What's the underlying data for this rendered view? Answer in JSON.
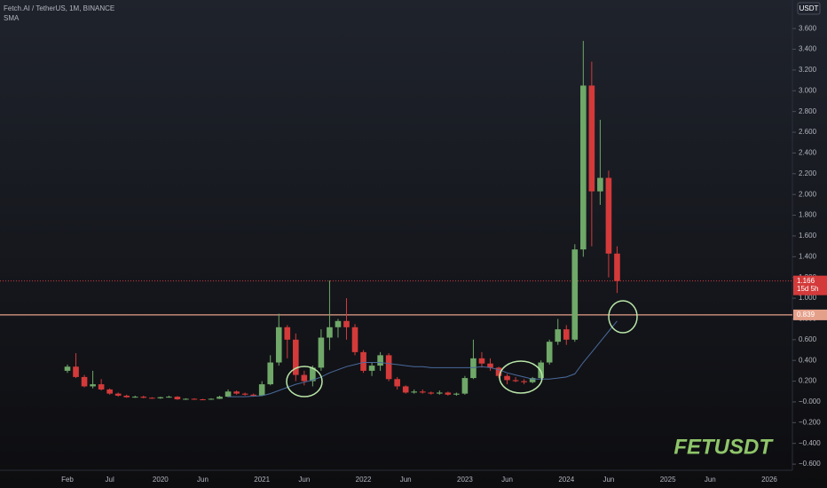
{
  "chart_data": {
    "type": "candlestick",
    "title": "Fetch.AI / TetherUS, 1M, BINANCE",
    "currency": "USDT",
    "watermark": "FETUSDT",
    "countdown": "15d 5h",
    "last_price": 1.166,
    "level_line": 0.839,
    "up_color": "#6fa868",
    "down_color": "#d43a3a",
    "categories": [
      "Feb",
      null,
      null,
      null,
      null,
      "Jul",
      null,
      null,
      null,
      null,
      null,
      "2020",
      null,
      null,
      null,
      null,
      "Jun",
      null,
      null,
      null,
      null,
      null,
      null,
      "2021",
      null,
      null,
      null,
      null,
      "Jun",
      null,
      null,
      null,
      null,
      null,
      null,
      "2022",
      null,
      null,
      null,
      null,
      "Jun",
      null,
      null,
      null,
      null,
      null,
      null,
      "2023",
      null,
      null,
      null,
      null,
      "Jun",
      null,
      null,
      null,
      null,
      null,
      null,
      "2024",
      null,
      null,
      null,
      null,
      "Jun",
      null,
      null,
      null,
      null,
      null,
      null,
      "2025",
      null,
      null,
      null,
      null,
      "Jun",
      null,
      null,
      null,
      null,
      null,
      null,
      "2026",
      null,
      null
    ],
    "open": [
      0.3,
      0.34,
      0.24,
      0.15,
      0.17,
      0.12,
      0.08,
      0.06,
      0.045,
      0.05,
      0.04,
      0.035,
      0.045,
      0.05,
      0.025,
      0.03,
      0.025,
      0.022,
      0.03,
      0.05,
      0.1,
      0.08,
      0.07,
      0.06,
      0.17,
      0.38,
      0.72,
      0.6,
      0.26,
      0.2,
      0.33,
      0.62,
      0.72,
      0.78,
      0.72,
      0.48,
      0.3,
      0.35,
      0.45,
      0.22,
      0.15,
      0.09,
      0.1,
      0.09,
      0.08,
      0.09,
      0.07,
      0.08,
      0.23,
      0.42,
      0.37,
      0.33,
      0.25,
      0.21,
      0.2,
      0.19,
      0.23,
      0.38,
      0.58,
      0.7,
      0.6,
      1.47,
      3.05,
      2.03,
      2.16,
      1.43,
      null,
      null,
      null,
      null,
      null,
      null,
      null,
      null,
      null,
      null,
      null,
      null,
      null,
      null,
      null,
      null,
      null,
      null,
      null,
      null
    ],
    "high": [
      0.36,
      0.47,
      0.26,
      0.3,
      0.22,
      0.13,
      0.09,
      0.07,
      0.06,
      0.06,
      0.045,
      0.05,
      0.06,
      0.055,
      0.035,
      0.035,
      0.03,
      0.035,
      0.06,
      0.12,
      0.11,
      0.09,
      0.08,
      0.2,
      0.45,
      0.85,
      0.74,
      0.66,
      0.3,
      0.35,
      0.7,
      1.17,
      0.8,
      1.0,
      0.75,
      0.5,
      0.38,
      0.48,
      0.47,
      0.24,
      0.16,
      0.12,
      0.12,
      0.1,
      0.11,
      0.1,
      0.09,
      0.25,
      0.6,
      0.48,
      0.42,
      0.34,
      0.27,
      0.24,
      0.22,
      0.24,
      0.4,
      0.6,
      0.8,
      0.74,
      1.52,
      3.48,
      3.28,
      2.72,
      2.23,
      1.5,
      null,
      null,
      null,
      null,
      null,
      null,
      null,
      null,
      null,
      null,
      null,
      null,
      null,
      null,
      null,
      null,
      null,
      null,
      null,
      null
    ],
    "low": [
      0.28,
      0.23,
      0.14,
      0.13,
      0.11,
      0.07,
      0.05,
      0.04,
      0.04,
      0.035,
      0.03,
      0.03,
      0.04,
      0.02,
      0.02,
      0.02,
      0.02,
      0.02,
      0.028,
      0.045,
      0.07,
      0.06,
      0.05,
      0.055,
      0.16,
      0.35,
      0.42,
      0.2,
      0.16,
      0.15,
      0.3,
      0.5,
      0.62,
      0.6,
      0.45,
      0.28,
      0.25,
      0.3,
      0.2,
      0.12,
      0.08,
      0.08,
      0.08,
      0.07,
      0.07,
      0.06,
      0.06,
      0.07,
      0.22,
      0.33,
      0.3,
      0.23,
      0.17,
      0.19,
      0.17,
      0.18,
      0.22,
      0.36,
      0.55,
      0.55,
      0.58,
      1.4,
      1.5,
      1.9,
      1.2,
      1.05,
      null,
      null,
      null,
      null,
      null,
      null,
      null,
      null,
      null,
      null,
      null,
      null,
      null,
      null,
      null,
      null,
      null,
      null,
      null,
      null
    ],
    "close": [
      0.34,
      0.24,
      0.15,
      0.17,
      0.12,
      0.08,
      0.06,
      0.045,
      0.05,
      0.04,
      0.035,
      0.045,
      0.05,
      0.025,
      0.03,
      0.025,
      0.022,
      0.03,
      0.05,
      0.1,
      0.08,
      0.07,
      0.06,
      0.17,
      0.38,
      0.72,
      0.6,
      0.26,
      0.2,
      0.33,
      0.62,
      0.72,
      0.78,
      0.72,
      0.48,
      0.3,
      0.35,
      0.45,
      0.22,
      0.15,
      0.09,
      0.1,
      0.09,
      0.08,
      0.09,
      0.07,
      0.08,
      0.23,
      0.42,
      0.37,
      0.33,
      0.25,
      0.21,
      0.2,
      0.19,
      0.23,
      0.38,
      0.58,
      0.7,
      0.6,
      1.47,
      3.05,
      2.03,
      2.16,
      1.43,
      1.166,
      null,
      null,
      null,
      null,
      null,
      null,
      null,
      null,
      null,
      null,
      null,
      null,
      null,
      null,
      null,
      null,
      null,
      null,
      null,
      null
    ],
    "series": [
      {
        "name": "SMA",
        "color": "#4a6a9c",
        "values": [
          null,
          null,
          null,
          null,
          null,
          null,
          null,
          null,
          null,
          null,
          null,
          null,
          null,
          null,
          null,
          null,
          null,
          null,
          null,
          0.05,
          0.05,
          0.05,
          0.055,
          0.06,
          0.08,
          0.11,
          0.14,
          0.17,
          0.19,
          0.21,
          0.24,
          0.28,
          0.31,
          0.34,
          0.36,
          0.38,
          0.38,
          0.38,
          0.37,
          0.36,
          0.35,
          0.34,
          0.34,
          0.33,
          0.33,
          0.33,
          0.33,
          0.33,
          0.33,
          0.34,
          0.33,
          0.31,
          0.28,
          0.26,
          0.24,
          0.22,
          0.22,
          0.22,
          0.23,
          0.24,
          0.27,
          0.38,
          0.48,
          0.58,
          0.68,
          0.78,
          null,
          null,
          null,
          null,
          null,
          null,
          null,
          null,
          null,
          null,
          null,
          null,
          null,
          null,
          null,
          null,
          null,
          null,
          null,
          null
        ]
      }
    ],
    "ylim": [
      -0.659,
      3.875
    ],
    "yticks": [
      {
        "value": -0.6,
        "label": "−0.600"
      },
      {
        "value": -0.4,
        "label": "−0.400"
      },
      {
        "value": -0.2,
        "label": "−0.200"
      },
      {
        "value": 0,
        "label": "−0.000"
      },
      {
        "value": 0.2,
        "label": "0.200"
      },
      {
        "value": 0.4,
        "label": "0.400"
      },
      {
        "value": 0.6,
        "label": "0.600"
      },
      {
        "value": 0.8,
        "label": "0.800"
      },
      {
        "value": 1,
        "label": "1.000"
      },
      {
        "value": 1.2,
        "label": "1.200"
      },
      {
        "value": 1.4,
        "label": "1.400"
      },
      {
        "value": 1.6,
        "label": "1.600"
      },
      {
        "value": 1.8,
        "label": "1.800"
      },
      {
        "value": 2,
        "label": "2.000"
      },
      {
        "value": 2.2,
        "label": "2.200"
      },
      {
        "value": 2.4,
        "label": "2.400"
      },
      {
        "value": 2.6,
        "label": "2.600"
      },
      {
        "value": 2.8,
        "label": "2.800"
      },
      {
        "value": 3,
        "label": "3.000"
      },
      {
        "value": 3.2,
        "label": "3.200"
      },
      {
        "value": 3.4,
        "label": "3.400"
      },
      {
        "value": 3.6,
        "label": "3.600"
      }
    ],
    "grid": false
  }
}
